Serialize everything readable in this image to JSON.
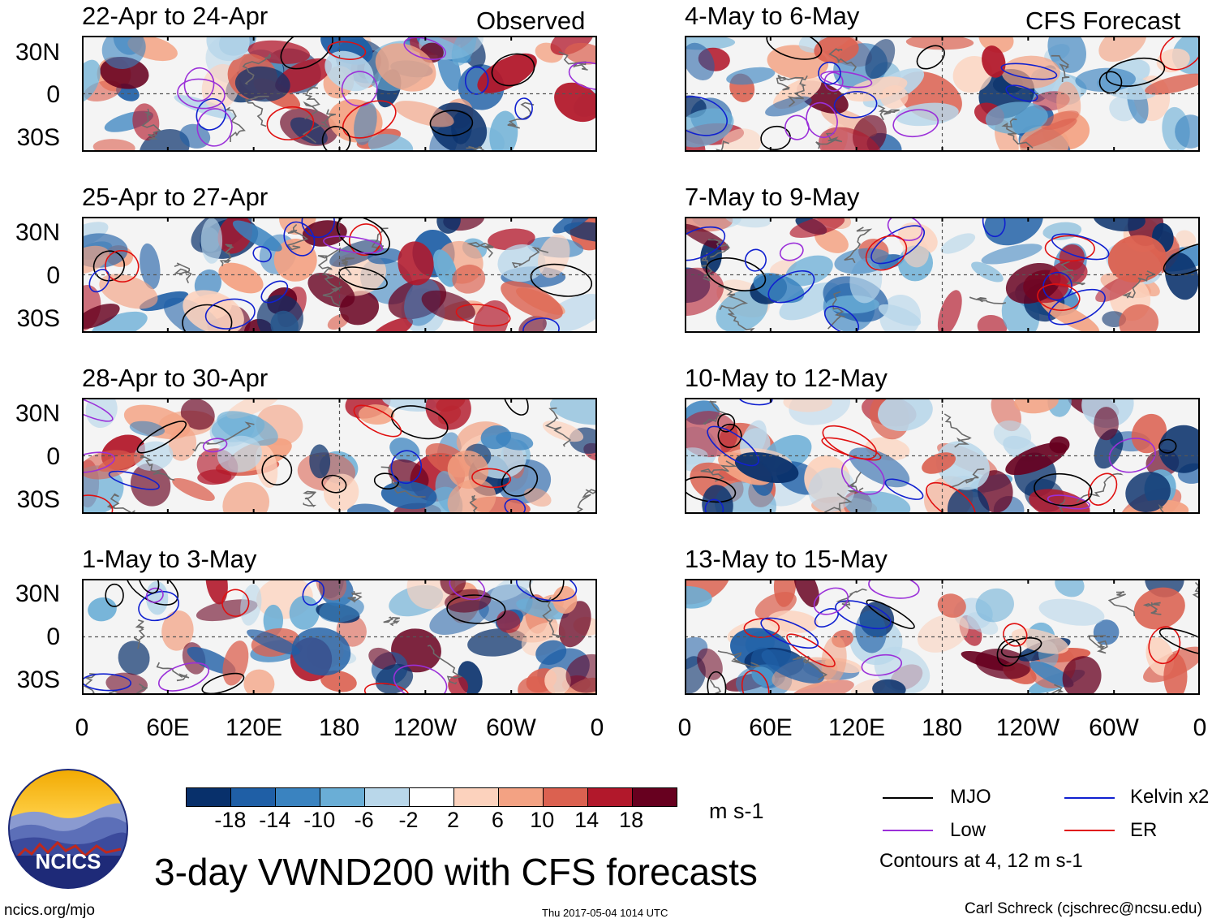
{
  "sections": {
    "observed": "Observed",
    "forecast": "CFS Forecast"
  },
  "panels_left": [
    {
      "title": "22-Apr to 24-Apr"
    },
    {
      "title": "25-Apr to 27-Apr"
    },
    {
      "title": "28-Apr to 30-Apr"
    },
    {
      "title": "1-May to 3-May"
    }
  ],
  "panels_right": [
    {
      "title": "4-May to 6-May"
    },
    {
      "title": "7-May to 9-May"
    },
    {
      "title": "10-May to 12-May"
    },
    {
      "title": "13-May to 15-May"
    }
  ],
  "lat_labels": [
    "30N",
    "0",
    "30S"
  ],
  "lon_labels": [
    "0",
    "60E",
    "120E",
    "180",
    "120W",
    "60W",
    "0"
  ],
  "colorbar": {
    "ticks": [
      "-18",
      "-14",
      "-10",
      "-6",
      "-2",
      "2",
      "6",
      "10",
      "14",
      "18"
    ],
    "units": "m s-1",
    "colors": [
      "#08306b",
      "#1f5fa6",
      "#3a83c0",
      "#6aaed6",
      "#b9d7ea",
      "#ffffff",
      "#fcd2bd",
      "#f3a283",
      "#db6150",
      "#b2182b",
      "#67001f"
    ]
  },
  "legend": {
    "items": [
      {
        "label": "MJO",
        "color": "#000000"
      },
      {
        "label": "Kelvin x2",
        "color": "#1020d0"
      },
      {
        "label": "Low",
        "color": "#9b30d9"
      },
      {
        "label": "ER",
        "color": "#e01010"
      }
    ],
    "note": "Contours at 4, 12 m s-1"
  },
  "title": "3-day VWND200 with CFS forecasts",
  "logo": {
    "text": "NCICS"
  },
  "footer": {
    "url": "ncics.org/mjo",
    "timestamp": "Thu 2017-05-04 1014 UTC",
    "credit": "Carl Schreck (cjschrec@ncsu.edu)"
  }
}
